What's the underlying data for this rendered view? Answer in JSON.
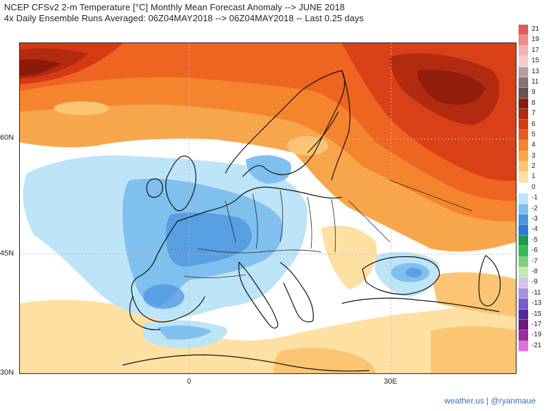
{
  "header": {
    "title_line1": "NCEP CFSv2 2-m Temperature [°C] Monthly Mean Forecast Anomaly --> JUNE 2018",
    "title_line2": "4x Daily Ensemble Runs Averaged: 06Z04MAY2018 --> 06Z04MAY2018 -- Last 0.25 days"
  },
  "axes": {
    "lat_labels": [
      "60N",
      "45N",
      "30N"
    ],
    "lon_labels": [
      "0",
      "30E"
    ]
  },
  "colorbar": {
    "labels": [
      "21",
      "19",
      "17",
      "15",
      "13",
      "11",
      "9",
      "8",
      "7",
      "6",
      "5",
      "4",
      "3",
      "2",
      "1",
      "0",
      "-1",
      "-2",
      "-3",
      "-4",
      "-5",
      "-6",
      "-7",
      "-8",
      "-9",
      "-11",
      "-13",
      "-15",
      "-17",
      "-19",
      "-21"
    ],
    "colors": [
      "#e05a5a",
      "#eb8c8c",
      "#f3b3b3",
      "#f6cccc",
      "#b2a0a0",
      "#8a7070",
      "#6a5050",
      "#8b1a0a",
      "#b22a10",
      "#d63a15",
      "#ec5a1e",
      "#f4842e",
      "#f8a64c",
      "#fbc574",
      "#fde0a2",
      "#ffffff",
      "#bde4f7",
      "#7fc0ee",
      "#4a93de",
      "#2f7ad0",
      "#1a9a4a",
      "#3ab85a",
      "#7ed07a",
      "#c4e8b8",
      "#d2c4ec",
      "#a890dc",
      "#7a5cc8",
      "#4e2a9a",
      "#6a1a7a",
      "#a02aa0",
      "#e070e0"
    ]
  },
  "footer": {
    "credit": "weather.us | @ryanmaue"
  }
}
